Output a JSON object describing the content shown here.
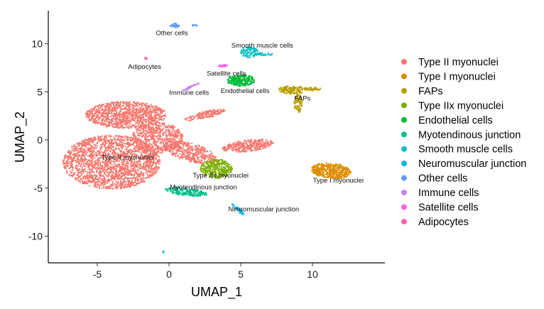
{
  "chart_data": {
    "type": "scatter",
    "title": "",
    "xlabel": "UMAP_1",
    "ylabel": "UMAP_2",
    "xlim": [
      -8.4,
      15.0
    ],
    "ylim": [
      -12.8,
      13.4
    ],
    "xticks": [
      -5,
      0,
      5,
      10
    ],
    "yticks": [
      -10,
      -5,
      0,
      5,
      10
    ],
    "grid": false,
    "legend_position": "right",
    "clusters": [
      {
        "name": "Type II myonuclei",
        "color": "#F8766D",
        "label_at": [
          -2.9,
          -1.8
        ],
        "blobs": [
          [
            -4.0,
            -2.3,
            3.4,
            2.8,
            0,
            2000
          ],
          [
            -3.0,
            2.6,
            2.8,
            1.4,
            0,
            1000
          ],
          [
            -0.8,
            0.2,
            1.8,
            1.6,
            0,
            550
          ],
          [
            1.5,
            -1.3,
            2.0,
            0.9,
            -25,
            420
          ],
          [
            5.5,
            -0.6,
            1.8,
            0.6,
            10,
            320
          ],
          [
            2.5,
            2.6,
            1.5,
            0.35,
            20,
            150
          ]
        ]
      },
      {
        "name": "Type I myonuclei",
        "color": "#DE8C00",
        "label_at": [
          11.8,
          -4.2
        ],
        "blobs": [
          [
            11.3,
            -3.2,
            1.4,
            0.8,
            -10,
            420
          ]
        ]
      },
      {
        "name": "FAPs",
        "color": "#B79F00",
        "label_at": [
          9.3,
          4.3
        ],
        "blobs": [
          [
            8.6,
            5.2,
            1.0,
            0.4,
            0,
            150
          ],
          [
            9.0,
            3.8,
            0.3,
            1.0,
            0,
            80
          ],
          [
            10.0,
            5.3,
            0.6,
            0.2,
            0,
            40
          ]
        ]
      },
      {
        "name": "Type IIx myonuclei",
        "color": "#7CAE00",
        "label_at": [
          3.6,
          -3.7
        ],
        "blobs": [
          [
            3.3,
            -3.0,
            1.1,
            1.0,
            0,
            350
          ]
        ]
      },
      {
        "name": "Endothelial cells",
        "color": "#00BA38",
        "label_at": [
          5.3,
          5.1
        ],
        "blobs": [
          [
            5.0,
            6.2,
            1.0,
            0.6,
            0,
            220
          ]
        ]
      },
      {
        "name": "Myotendinous junction",
        "color": "#00C08B",
        "label_at": [
          2.4,
          -4.9
        ],
        "blobs": [
          [
            1.2,
            -5.4,
            1.5,
            0.4,
            -10,
            200
          ]
        ]
      },
      {
        "name": "Smooth muscle cells",
        "color": "#00BFC4",
        "label_at": [
          6.5,
          9.8
        ],
        "blobs": [
          [
            5.6,
            9.1,
            0.6,
            0.6,
            0,
            100
          ],
          [
            6.6,
            8.9,
            0.6,
            0.15,
            0,
            30
          ]
        ]
      },
      {
        "name": "Neuromuscular junction",
        "color": "#00B4F0",
        "label_at": [
          6.6,
          -7.2
        ],
        "blobs": [
          [
            4.8,
            -7.2,
            0.7,
            0.15,
            -55,
            40
          ],
          [
            -0.4,
            -11.6,
            0.05,
            0.15,
            0,
            5
          ]
        ]
      },
      {
        "name": "Other cells",
        "color": "#619CFF",
        "label_at": [
          0.2,
          11.1
        ],
        "blobs": [
          [
            0.4,
            11.9,
            0.35,
            0.2,
            0,
            40
          ],
          [
            1.8,
            11.9,
            0.2,
            0.08,
            0,
            10
          ]
        ]
      },
      {
        "name": "Immune cells",
        "color": "#C77CFF",
        "label_at": [
          1.4,
          4.9
        ],
        "blobs": [
          [
            1.5,
            5.5,
            0.7,
            0.1,
            35,
            35
          ]
        ]
      },
      {
        "name": "Satellite cells",
        "color": "#F564E3",
        "label_at": [
          4.0,
          6.9
        ],
        "blobs": [
          [
            3.8,
            7.7,
            0.35,
            0.12,
            0,
            30
          ]
        ]
      },
      {
        "name": "Adipocytes",
        "color": "#FF64B0",
        "label_at": [
          -1.7,
          7.6
        ],
        "blobs": [
          [
            -1.6,
            8.5,
            0.1,
            0.15,
            0,
            10
          ]
        ]
      }
    ]
  }
}
